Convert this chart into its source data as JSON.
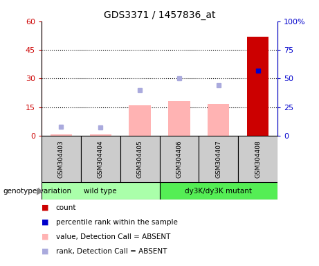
{
  "title": "GDS3371 / 1457836_at",
  "samples": [
    "GSM304403",
    "GSM304404",
    "GSM304405",
    "GSM304406",
    "GSM304407",
    "GSM304408"
  ],
  "bar_values": [
    0.5,
    0.8,
    16.0,
    18.0,
    16.5,
    52.0
  ],
  "bar_colors": [
    "#ffb3b3",
    "#ffb3b3",
    "#ffb3b3",
    "#ffb3b3",
    "#ffb3b3",
    "#cc0000"
  ],
  "rank_dots_pct": [
    8.0,
    7.0,
    40.0,
    50.0,
    44.0,
    57.0
  ],
  "rank_dot_colors": [
    "#aaaadd",
    "#aaaadd",
    "#aaaadd",
    "#aaaadd",
    "#aaaadd",
    "#0000cc"
  ],
  "left_ylim": [
    0,
    60
  ],
  "right_ylim": [
    0,
    100
  ],
  "left_yticks": [
    0,
    15,
    30,
    45,
    60
  ],
  "right_yticks": [
    0,
    25,
    50,
    75,
    100
  ],
  "left_tick_labels": [
    "0",
    "15",
    "30",
    "45",
    "60"
  ],
  "right_tick_labels": [
    "0",
    "25",
    "50",
    "75",
    "100%"
  ],
  "left_tick_color": "#cc0000",
  "right_tick_color": "#0000cc",
  "group_label": "genotype/variation",
  "wt_color": "#aaffaa",
  "mut_color": "#55ee55",
  "sample_box_color": "#cccccc",
  "legend_items": [
    {
      "label": "count",
      "color": "#cc0000"
    },
    {
      "label": "percentile rank within the sample",
      "color": "#0000cc"
    },
    {
      "label": "value, Detection Call = ABSENT",
      "color": "#ffb3b3"
    },
    {
      "label": "rank, Detection Call = ABSENT",
      "color": "#aaaadd"
    }
  ]
}
